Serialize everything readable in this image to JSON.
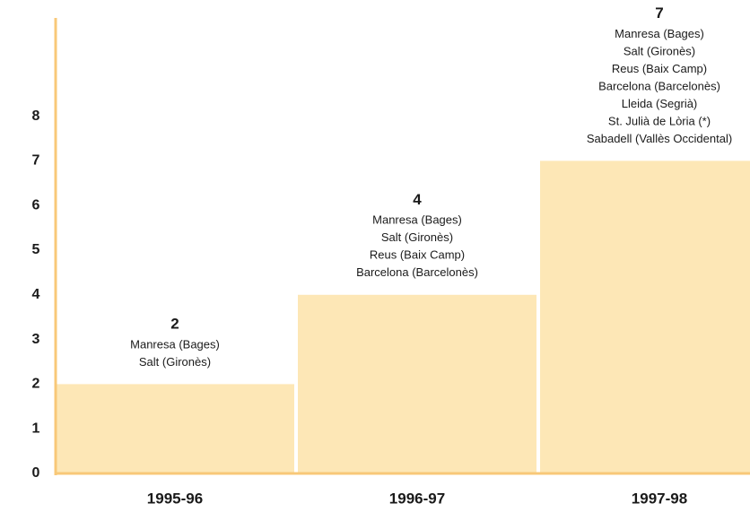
{
  "chart_data": {
    "type": "bar",
    "categories": [
      "1995-96",
      "1996-97",
      "1997-98"
    ],
    "values": [
      2,
      4,
      7
    ],
    "annotations": [
      [
        "Manresa (Bages)",
        "Salt (Gironès)"
      ],
      [
        "Manresa (Bages)",
        "Salt (Gironès)",
        "Reus (Baix Camp)",
        "Barcelona (Barcelonès)"
      ],
      [
        "Manresa (Bages)",
        "Salt (Gironès)",
        "Reus (Baix Camp)",
        "Barcelona (Barcelonès)",
        "Lleida (Segrià)",
        "St. Julià de Lòria (*)",
        "Sabadell (Vallès Occidental)"
      ]
    ],
    "color": "#fde7b6",
    "axis_color": "#f8c878",
    "ylim": [
      0,
      10.2
    ],
    "yticks": [
      0,
      1,
      2,
      3,
      4,
      5,
      6,
      7,
      8
    ],
    "grid": false
  }
}
